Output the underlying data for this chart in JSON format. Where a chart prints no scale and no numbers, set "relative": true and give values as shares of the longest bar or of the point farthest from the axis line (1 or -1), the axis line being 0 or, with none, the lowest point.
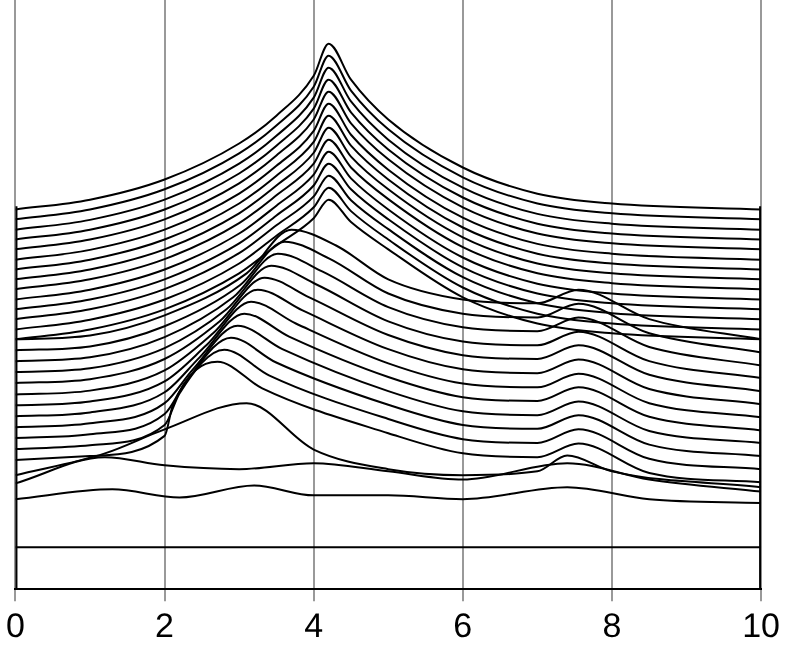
{
  "chart_data": {
    "type": "line",
    "relative": true,
    "xlim": [
      0,
      10
    ],
    "xticks": [
      0,
      2,
      4,
      6,
      8,
      10
    ],
    "grid": "x",
    "legend": false,
    "marker": "none",
    "series": [
      {
        "color": "#000000",
        "x": [
          0,
          1,
          2,
          3,
          3.5,
          4,
          4.2,
          4.5,
          5,
          6,
          7,
          8,
          10
        ],
        "values": [
          0.696,
          0.714,
          0.751,
          0.817,
          0.868,
          0.941,
          1.0,
          0.934,
          0.861,
          0.773,
          0.725,
          0.707,
          0.696
        ]
      },
      {
        "color": "#000000",
        "x": [
          0,
          1,
          2,
          3,
          3.5,
          4,
          4.2,
          4.5,
          5,
          6,
          7,
          8,
          10
        ],
        "values": [
          0.678,
          0.696,
          0.733,
          0.799,
          0.85,
          0.921,
          0.978,
          0.914,
          0.843,
          0.755,
          0.707,
          0.689,
          0.678
        ]
      },
      {
        "color": "#000000",
        "x": [
          0,
          1,
          2,
          3,
          3.5,
          4,
          4.2,
          4.5,
          5,
          6,
          7,
          8,
          10
        ],
        "values": [
          0.659,
          0.677,
          0.714,
          0.78,
          0.831,
          0.901,
          0.956,
          0.894,
          0.824,
          0.736,
          0.688,
          0.67,
          0.659
        ]
      },
      {
        "color": "#000000",
        "x": [
          0,
          1,
          2,
          3,
          3.5,
          4,
          4.2,
          4.5,
          5,
          6,
          7,
          8,
          10
        ],
        "values": [
          0.641,
          0.659,
          0.696,
          0.762,
          0.813,
          0.881,
          0.934,
          0.874,
          0.806,
          0.718,
          0.67,
          0.652,
          0.641
        ]
      },
      {
        "color": "#000000",
        "x": [
          0,
          1,
          2,
          3,
          3.5,
          4,
          4.2,
          4.5,
          5,
          6,
          7,
          8,
          10
        ],
        "values": [
          0.623,
          0.641,
          0.678,
          0.744,
          0.795,
          0.861,
          0.912,
          0.854,
          0.788,
          0.7,
          0.652,
          0.634,
          0.623
        ]
      },
      {
        "color": "#000000",
        "x": [
          0,
          1,
          2,
          3,
          3.5,
          4,
          4.2,
          4.5,
          5,
          6,
          7,
          8,
          10
        ],
        "values": [
          0.604,
          0.622,
          0.659,
          0.725,
          0.776,
          0.84,
          0.89,
          0.833,
          0.769,
          0.681,
          0.633,
          0.615,
          0.604
        ]
      },
      {
        "color": "#000000",
        "x": [
          0,
          1,
          2,
          3,
          3.5,
          4,
          4.2,
          4.5,
          5,
          6,
          7,
          8,
          10
        ],
        "values": [
          0.586,
          0.604,
          0.641,
          0.707,
          0.758,
          0.82,
          0.868,
          0.813,
          0.751,
          0.663,
          0.615,
          0.597,
          0.586
        ]
      },
      {
        "color": "#000000",
        "x": [
          0,
          1,
          2,
          3,
          3.5,
          4,
          4.2,
          4.5,
          5,
          6,
          7,
          8,
          10
        ],
        "values": [
          0.568,
          0.586,
          0.623,
          0.689,
          0.74,
          0.8,
          0.846,
          0.793,
          0.733,
          0.645,
          0.597,
          0.579,
          0.568
        ]
      },
      {
        "color": "#000000",
        "x": [
          0,
          1,
          2,
          3,
          3.5,
          4,
          4.2,
          4.5,
          5,
          6,
          7,
          8,
          10
        ],
        "values": [
          0.55,
          0.568,
          0.605,
          0.671,
          0.722,
          0.78,
          0.824,
          0.773,
          0.715,
          0.627,
          0.579,
          0.561,
          0.55
        ]
      },
      {
        "color": "#000000",
        "x": [
          0,
          1,
          2,
          3,
          3.5,
          4,
          4.2,
          4.5,
          5,
          6,
          7,
          8,
          10
        ],
        "values": [
          0.531,
          0.549,
          0.586,
          0.652,
          0.703,
          0.76,
          0.802,
          0.753,
          0.696,
          0.608,
          0.56,
          0.542,
          0.531
        ]
      },
      {
        "color": "#000000",
        "x": [
          0,
          1,
          2,
          3,
          3.5,
          4,
          4.2,
          4.5,
          5,
          6,
          7,
          8,
          10
        ],
        "values": [
          0.513,
          0.531,
          0.568,
          0.634,
          0.685,
          0.74,
          0.78,
          0.733,
          0.678,
          0.59,
          0.542,
          0.524,
          0.513
        ]
      },
      {
        "color": "#000000",
        "x": [
          0,
          1,
          2,
          3,
          3.5,
          4,
          4.2,
          4.5,
          5,
          6,
          7,
          8,
          10
        ],
        "values": [
          0.495,
          0.513,
          0.55,
          0.616,
          0.667,
          0.72,
          0.758,
          0.713,
          0.66,
          0.572,
          0.524,
          0.506,
          0.495
        ]
      },
      {
        "color": "#000000",
        "x": [
          0,
          1,
          2,
          3,
          3.5,
          4,
          4.2,
          4.5,
          5,
          6,
          7,
          8,
          10
        ],
        "values": [
          0.476,
          0.494,
          0.531,
          0.597,
          0.648,
          0.7,
          0.736,
          0.693,
          0.641,
          0.553,
          0.505,
          0.487,
          0.476
        ]
      },
      {
        "color": "#000000",
        "x": [
          0,
          1,
          2,
          3,
          3.5,
          4,
          4.2,
          4.5,
          5,
          6,
          7,
          8,
          10
        ],
        "values": [
          0.458,
          0.476,
          0.513,
          0.579,
          0.63,
          0.68,
          0.714,
          0.673,
          0.623,
          0.535,
          0.487,
          0.469,
          0.458
        ]
      },
      {
        "color": "#000000",
        "x": [
          0,
          1,
          2,
          3.1,
          3.7,
          4.3,
          5,
          6,
          7,
          7.55,
          8.5,
          10
        ],
        "values": [
          0.458,
          0.465,
          0.502,
          0.579,
          0.659,
          0.63,
          0.568,
          0.531,
          0.524,
          0.549,
          0.495,
          0.458
        ]
      },
      {
        "color": "#000000",
        "x": [
          0,
          1,
          2,
          3.01,
          3.61,
          4.21,
          5,
          6,
          7,
          7.55,
          8.5,
          10
        ],
        "values": [
          0.438,
          0.445,
          0.482,
          0.557,
          0.637,
          0.606,
          0.542,
          0.505,
          0.498,
          0.523,
          0.469,
          0.434
        ]
      },
      {
        "color": "#000000",
        "x": [
          0,
          1,
          2,
          2.92,
          3.52,
          4.12,
          5,
          6,
          7,
          7.55,
          8.5,
          10
        ],
        "values": [
          0.418,
          0.425,
          0.462,
          0.535,
          0.615,
          0.582,
          0.517,
          0.48,
          0.473,
          0.498,
          0.444,
          0.41
        ]
      },
      {
        "color": "#000000",
        "x": [
          0,
          1,
          2,
          2.83,
          3.43,
          4.03,
          5,
          6,
          7,
          7.55,
          8.5,
          10
        ],
        "values": [
          0.398,
          0.405,
          0.442,
          0.513,
          0.593,
          0.559,
          0.491,
          0.454,
          0.447,
          0.472,
          0.418,
          0.387
        ]
      },
      {
        "color": "#000000",
        "x": [
          0,
          1,
          2,
          2.74,
          3.34,
          3.94,
          5,
          6,
          7,
          7.55,
          8.5,
          10
        ],
        "values": [
          0.378,
          0.385,
          0.422,
          0.491,
          0.571,
          0.535,
          0.466,
          0.429,
          0.422,
          0.447,
          0.393,
          0.363
        ]
      },
      {
        "color": "#000000",
        "x": [
          0,
          1,
          2,
          2.65,
          3.25,
          3.85,
          5,
          6,
          7,
          7.55,
          8.5,
          10
        ],
        "values": [
          0.357,
          0.364,
          0.401,
          0.469,
          0.549,
          0.511,
          0.44,
          0.403,
          0.396,
          0.421,
          0.367,
          0.339
        ]
      },
      {
        "color": "#000000",
        "x": [
          0,
          1,
          2,
          2.56,
          3.16,
          3.76,
          5,
          6,
          7,
          7.55,
          8.5,
          10
        ],
        "values": [
          0.337,
          0.344,
          0.381,
          0.447,
          0.527,
          0.487,
          0.414,
          0.377,
          0.37,
          0.395,
          0.341,
          0.315
        ]
      },
      {
        "color": "#000000",
        "x": [
          0,
          1,
          2,
          2.47,
          3.07,
          3.67,
          5,
          6,
          7,
          7.55,
          8.5,
          10
        ],
        "values": [
          0.317,
          0.324,
          0.361,
          0.425,
          0.505,
          0.463,
          0.389,
          0.352,
          0.345,
          0.37,
          0.316,
          0.291
        ]
      },
      {
        "color": "#000000",
        "x": [
          0,
          1,
          2,
          2.38,
          2.98,
          3.58,
          5,
          6,
          7,
          7.55,
          8.5,
          10
        ],
        "values": [
          0.297,
          0.304,
          0.341,
          0.403,
          0.483,
          0.44,
          0.363,
          0.326,
          0.319,
          0.344,
          0.29,
          0.268
        ]
      },
      {
        "color": "#000000",
        "x": [
          0,
          1,
          2,
          2.29,
          2.89,
          3.49,
          5,
          6,
          7,
          7.55,
          8.5,
          10
        ],
        "values": [
          0.277,
          0.284,
          0.321,
          0.381,
          0.461,
          0.416,
          0.338,
          0.301,
          0.294,
          0.319,
          0.265,
          0.244
        ]
      },
      {
        "color": "#000000",
        "x": [
          0,
          1,
          2,
          2.2,
          2.8,
          3.4,
          5,
          6,
          7,
          7.55,
          8.5,
          10
        ],
        "values": [
          0.257,
          0.264,
          0.301,
          0.359,
          0.439,
          0.392,
          0.312,
          0.275,
          0.268,
          0.293,
          0.239,
          0.22
        ]
      },
      {
        "color": "#000000",
        "x": [
          0,
          1,
          2,
          2.11,
          2.71,
          3.31,
          5,
          6,
          7,
          7.55,
          8.5,
          10
        ],
        "values": [
          0.237,
          0.244,
          0.281,
          0.337,
          0.417,
          0.368,
          0.286,
          0.249,
          0.242,
          0.267,
          0.213,
          0.196
        ]
      },
      {
        "color": "#000000",
        "x": [
          0,
          1.2,
          2,
          3.1,
          4,
          5,
          6,
          7,
          7.4,
          8,
          10
        ],
        "values": [
          0.209,
          0.249,
          0.293,
          0.341,
          0.256,
          0.22,
          0.209,
          0.216,
          0.245,
          0.216,
          0.187
        ]
      },
      {
        "color": "#000000",
        "x": [
          0,
          1.2,
          2,
          3,
          4,
          5,
          6,
          7.4,
          8.5,
          10
        ],
        "values": [
          0.194,
          0.242,
          0.227,
          0.22,
          0.231,
          0.216,
          0.201,
          0.231,
          0.201,
          0.179
        ]
      },
      {
        "color": "#000000",
        "x": [
          0,
          1.3,
          2.2,
          3.2,
          4,
          5,
          6,
          7.4,
          8.5,
          10
        ],
        "values": [
          0.165,
          0.183,
          0.168,
          0.19,
          0.172,
          0.172,
          0.165,
          0.187,
          0.165,
          0.158
        ]
      },
      {
        "color": "#000000",
        "x": [
          0,
          10
        ],
        "values": [
          0.077,
          0.077
        ]
      }
    ]
  }
}
